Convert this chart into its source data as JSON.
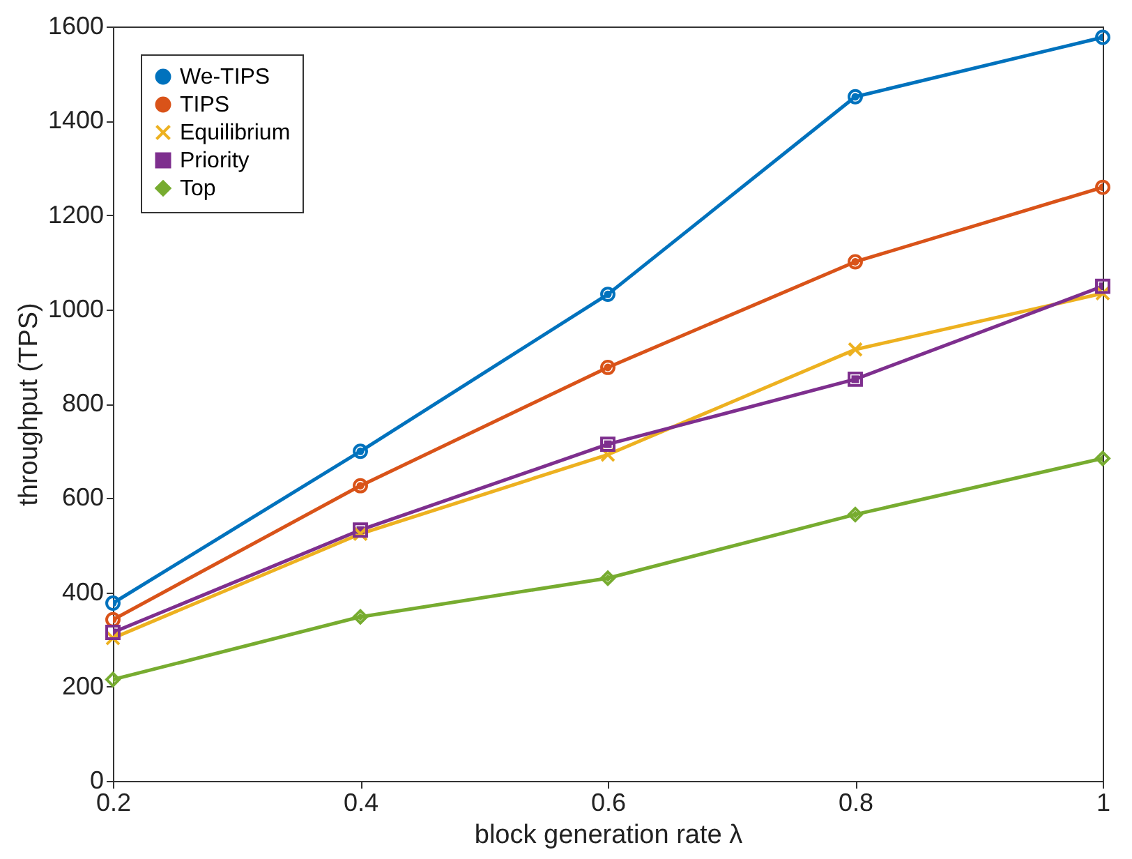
{
  "chart_data": {
    "type": "line",
    "xlabel": "block generation rate λ",
    "ylabel": "throughput (TPS)",
    "x": [
      0.2,
      0.4,
      0.6,
      0.8,
      1
    ],
    "series": [
      {
        "name": "We-TIPS",
        "color": "#0072bd",
        "marker": "circle",
        "values": [
          377,
          699,
          1032,
          1451,
          1577
        ]
      },
      {
        "name": "TIPS",
        "color": "#d95319",
        "marker": "circle",
        "values": [
          342,
          626,
          877,
          1101,
          1259
        ]
      },
      {
        "name": "Equilibrium",
        "color": "#edb120",
        "marker": "cross",
        "values": [
          303,
          524,
          692,
          915,
          1034
        ]
      },
      {
        "name": "Priority",
        "color": "#7e2f8e",
        "marker": "square",
        "values": [
          315,
          532,
          714,
          852,
          1049
        ]
      },
      {
        "name": "Top",
        "color": "#77ac30",
        "marker": "diamond",
        "values": [
          215,
          348,
          430,
          565,
          684
        ]
      }
    ],
    "xlim": [
      0.2,
      1
    ],
    "xticks": [
      0.2,
      0.4,
      0.6,
      0.8,
      1
    ],
    "ylim": [
      0,
      1600
    ],
    "yticks": [
      0,
      200,
      400,
      600,
      800,
      1000,
      1200,
      1400,
      1600
    ],
    "grid": false,
    "legend": "top left",
    "line_style": "solid"
  }
}
